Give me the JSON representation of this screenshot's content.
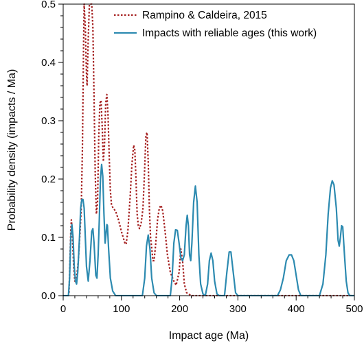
{
  "chart_data": {
    "type": "line",
    "title": "",
    "xlabel": "Impact age (Ma)",
    "ylabel": "Probability density (impacts / Ma)",
    "xlim": [
      0,
      500
    ],
    "ylim": [
      0,
      0.5
    ],
    "xticks": [
      0,
      100,
      200,
      300,
      400,
      500
    ],
    "yticks": [
      0.0,
      0.1,
      0.2,
      0.3,
      0.4,
      0.5
    ],
    "xtick_labels": [
      "0",
      "100",
      "200",
      "300",
      "400",
      "500"
    ],
    "ytick_labels": [
      "0.0",
      "0.1",
      "0.2",
      "0.3",
      "0.4",
      "0.5"
    ],
    "grid": false,
    "legend": "top-right",
    "series": [
      {
        "name": "Rampino & Caldeira, 2015",
        "style": "dotted",
        "color": "#a52020",
        "points": [
          [
            10,
            0.005
          ],
          [
            13,
            0.11
          ],
          [
            14,
            0.13
          ],
          [
            15,
            0.12
          ],
          [
            18,
            0.05
          ],
          [
            20,
            0.025
          ],
          [
            23,
            0.03
          ],
          [
            26,
            0.06
          ],
          [
            29,
            0.11
          ],
          [
            31,
            0.15
          ],
          [
            33,
            0.25
          ],
          [
            35,
            0.43
          ],
          [
            36,
            0.5
          ],
          [
            38,
            0.46
          ],
          [
            40,
            0.38
          ],
          [
            41,
            0.36
          ],
          [
            43,
            0.44
          ],
          [
            45,
            0.5
          ],
          [
            47,
            0.5
          ],
          [
            49,
            0.5
          ],
          [
            51,
            0.46
          ],
          [
            53,
            0.34
          ],
          [
            55,
            0.21
          ],
          [
            57,
            0.14
          ],
          [
            59,
            0.16
          ],
          [
            61,
            0.27
          ],
          [
            63,
            0.33
          ],
          [
            65,
            0.335
          ],
          [
            67,
            0.29
          ],
          [
            69,
            0.23
          ],
          [
            71,
            0.26
          ],
          [
            73,
            0.33
          ],
          [
            75,
            0.345
          ],
          [
            77,
            0.31
          ],
          [
            79,
            0.24
          ],
          [
            81,
            0.18
          ],
          [
            83,
            0.155
          ],
          [
            86,
            0.15
          ],
          [
            90,
            0.145
          ],
          [
            95,
            0.13
          ],
          [
            100,
            0.11
          ],
          [
            103,
            0.1
          ],
          [
            106,
            0.09
          ],
          [
            108,
            0.088
          ],
          [
            111,
            0.11
          ],
          [
            115,
            0.17
          ],
          [
            118,
            0.225
          ],
          [
            121,
            0.258
          ],
          [
            123,
            0.25
          ],
          [
            125,
            0.2
          ],
          [
            127,
            0.14
          ],
          [
            129,
            0.12
          ],
          [
            131,
            0.115
          ],
          [
            134,
            0.125
          ],
          [
            137,
            0.15
          ],
          [
            140,
            0.22
          ],
          [
            142,
            0.275
          ],
          [
            144,
            0.28
          ],
          [
            146,
            0.23
          ],
          [
            148,
            0.15
          ],
          [
            150,
            0.1
          ],
          [
            152,
            0.082
          ],
          [
            154,
            0.06
          ],
          [
            156,
            0.06
          ],
          [
            159,
            0.09
          ],
          [
            162,
            0.13
          ],
          [
            165,
            0.15
          ],
          [
            168,
            0.155
          ],
          [
            171,
            0.145
          ],
          [
            175,
            0.11
          ],
          [
            179,
            0.07
          ],
          [
            184,
            0.04
          ],
          [
            190,
            0.025
          ],
          [
            194,
            0.018
          ],
          [
            199,
            0.04
          ],
          [
            202,
            0.08
          ],
          [
            205,
            0.06
          ],
          [
            208,
            0.02
          ],
          [
            212,
            0.005
          ],
          [
            220,
            0.0
          ],
          [
            500,
            0.0
          ]
        ]
      },
      {
        "name": "Impacts with reliable ages (this work)",
        "style": "solid",
        "color": "#2c8ab0",
        "points": [
          [
            0,
            0.0
          ],
          [
            9,
            0.0
          ],
          [
            11,
            0.03
          ],
          [
            13,
            0.1
          ],
          [
            15,
            0.122
          ],
          [
            17,
            0.1
          ],
          [
            19,
            0.05
          ],
          [
            21,
            0.025
          ],
          [
            23,
            0.02
          ],
          [
            25,
            0.04
          ],
          [
            28,
            0.1
          ],
          [
            30,
            0.15
          ],
          [
            32,
            0.165
          ],
          [
            34,
            0.165
          ],
          [
            36,
            0.15
          ],
          [
            38,
            0.1
          ],
          [
            40,
            0.05
          ],
          [
            43,
            0.025
          ],
          [
            46,
            0.06
          ],
          [
            49,
            0.11
          ],
          [
            51,
            0.115
          ],
          [
            53,
            0.09
          ],
          [
            56,
            0.035
          ],
          [
            58,
            0.03
          ],
          [
            60,
            0.07
          ],
          [
            62,
            0.13
          ],
          [
            64,
            0.2
          ],
          [
            66,
            0.225
          ],
          [
            68,
            0.205
          ],
          [
            70,
            0.14
          ],
          [
            72,
            0.09
          ],
          [
            73,
            0.1
          ],
          [
            75,
            0.122
          ],
          [
            76,
            0.12
          ],
          [
            78,
            0.08
          ],
          [
            81,
            0.03
          ],
          [
            85,
            0.008
          ],
          [
            90,
            0.0
          ],
          [
            136,
            0.0
          ],
          [
            140,
            0.03
          ],
          [
            143,
            0.085
          ],
          [
            146,
            0.104
          ],
          [
            149,
            0.08
          ],
          [
            152,
            0.03
          ],
          [
            156,
            0.005
          ],
          [
            160,
            0.0
          ],
          [
            184,
            0.0
          ],
          [
            187,
            0.03
          ],
          [
            190,
            0.09
          ],
          [
            193,
            0.113
          ],
          [
            196,
            0.112
          ],
          [
            199,
            0.09
          ],
          [
            202,
            0.065
          ],
          [
            205,
            0.06
          ],
          [
            208,
            0.07
          ],
          [
            211,
            0.12
          ],
          [
            213,
            0.138
          ],
          [
            215,
            0.12
          ],
          [
            217,
            0.07
          ],
          [
            219,
            0.06
          ],
          [
            221,
            0.09
          ],
          [
            224,
            0.16
          ],
          [
            227,
            0.188
          ],
          [
            230,
            0.16
          ],
          [
            233,
            0.07
          ],
          [
            236,
            0.02
          ],
          [
            240,
            0.003
          ],
          [
            244,
            0.0
          ],
          [
            244,
            0.0
          ],
          [
            248,
            0.02
          ],
          [
            251,
            0.06
          ],
          [
            254,
            0.073
          ],
          [
            257,
            0.06
          ],
          [
            260,
            0.025
          ],
          [
            264,
            0.003
          ],
          [
            268,
            0.0
          ],
          [
            277,
            0.0
          ],
          [
            281,
            0.04
          ],
          [
            285,
            0.075
          ],
          [
            288,
            0.075
          ],
          [
            292,
            0.04
          ],
          [
            296,
            0.005
          ],
          [
            300,
            0.0
          ],
          [
            368,
            0.0
          ],
          [
            373,
            0.01
          ],
          [
            378,
            0.03
          ],
          [
            383,
            0.06
          ],
          [
            388,
            0.07
          ],
          [
            392,
            0.07
          ],
          [
            396,
            0.06
          ],
          [
            400,
            0.035
          ],
          [
            404,
            0.01
          ],
          [
            408,
            0.0
          ],
          [
            440,
            0.0
          ],
          [
            446,
            0.02
          ],
          [
            451,
            0.07
          ],
          [
            455,
            0.14
          ],
          [
            459,
            0.185
          ],
          [
            462,
            0.197
          ],
          [
            465,
            0.19
          ],
          [
            469,
            0.15
          ],
          [
            472,
            0.095
          ],
          [
            474,
            0.085
          ],
          [
            476,
            0.1
          ],
          [
            478,
            0.12
          ],
          [
            480,
            0.118
          ],
          [
            483,
            0.07
          ],
          [
            486,
            0.025
          ],
          [
            489,
            0.005
          ],
          [
            492,
            0.0
          ],
          [
            500,
            0.0
          ]
        ]
      }
    ]
  }
}
